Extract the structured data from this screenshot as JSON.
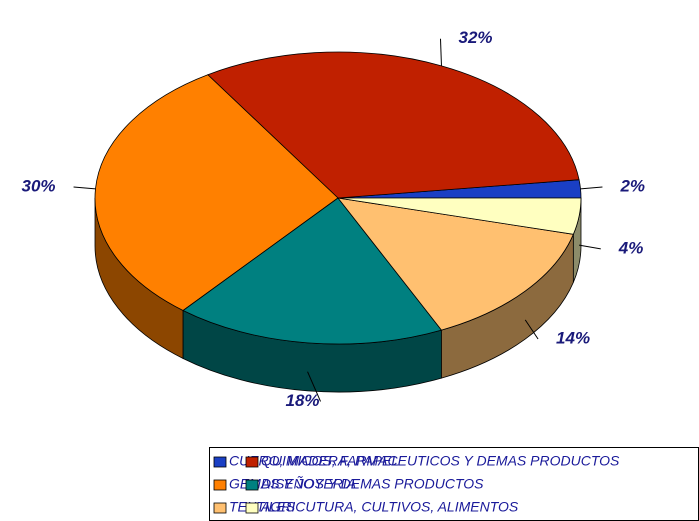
{
  "chart_data": {
    "type": "pie",
    "categories": [
      "CUERO, MADERA, PAPEL",
      "QUIMICOS, FARMACEUTICOS Y DEMAS PRODUCTOS",
      "GEMAS Y JOYERIA",
      "DISEÑOS Y DEMAS PRODUCTOS",
      "TEXTILES",
      "AGRICUTURA, CULTIVOS, ALIMENTOS"
    ],
    "values": [
      2,
      32,
      30,
      18,
      14,
      4
    ],
    "value_labels": [
      "2%",
      "32%",
      "30%",
      "18%",
      "14%",
      "4%"
    ],
    "colors": [
      "#1a3fc4",
      "#c02000",
      "#ff8000",
      "#008080",
      "#ffc070",
      "#ffffc0"
    ]
  }
}
